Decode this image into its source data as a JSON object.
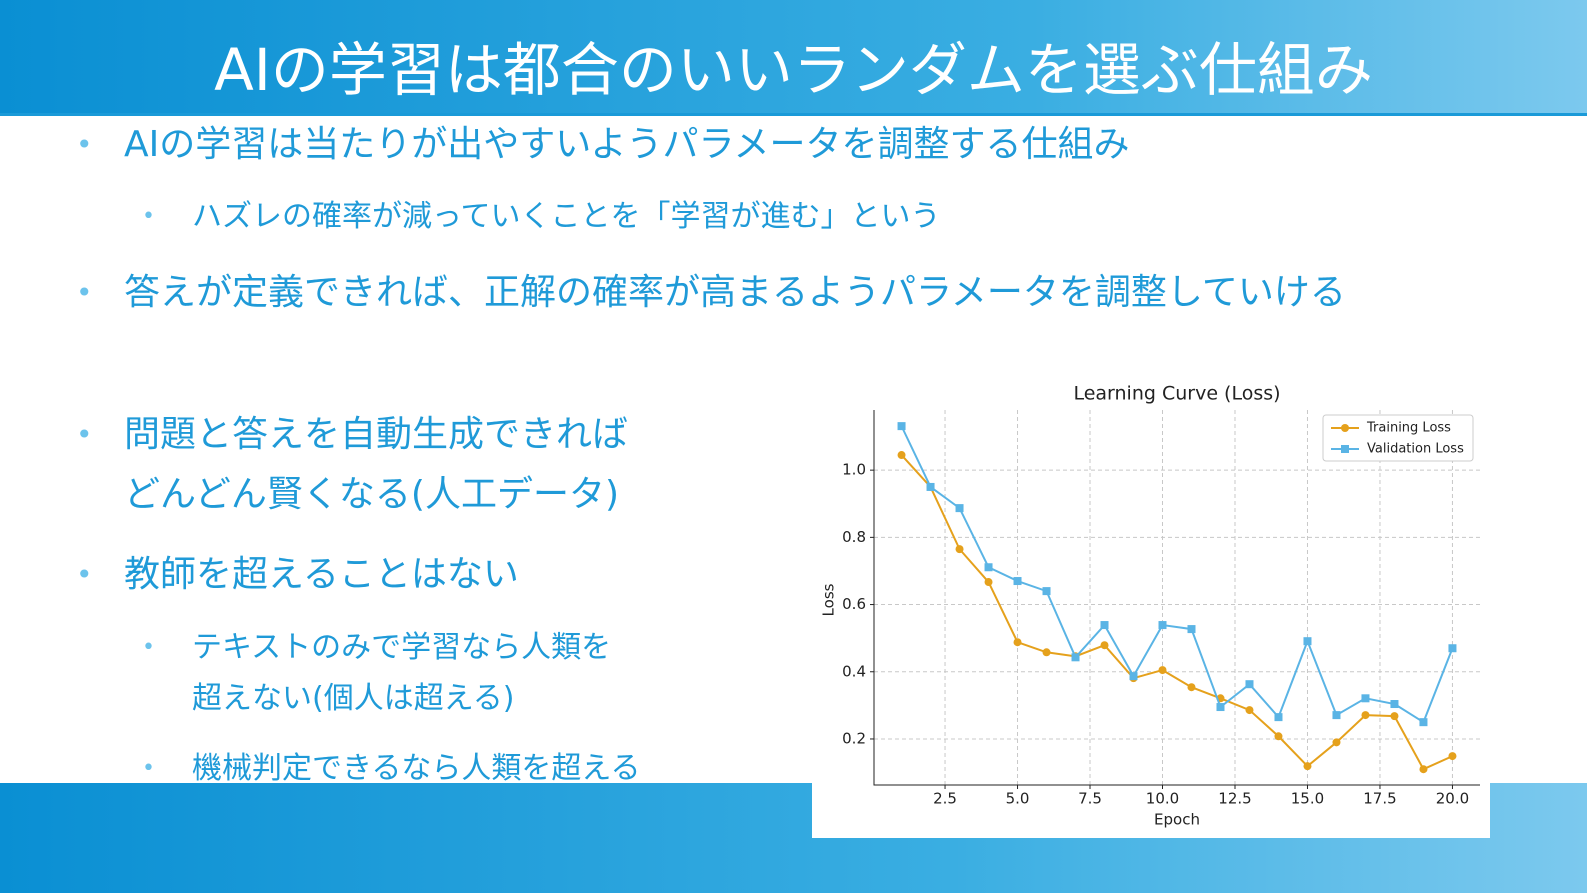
{
  "slide": {
    "title": "AIの学習は都合のいいランダムを選ぶ仕組み",
    "bullets": [
      {
        "text": "AIの学習は当たりが出やすいようパラメータを調整する仕組み",
        "sub": [
          "ハズレの確率が減っていくことを「学習が進む」という"
        ]
      },
      {
        "text": "答えが定義できれば、正解の確率が高まるようパラメータを調整していける",
        "sub": []
      },
      {
        "text": "問題と答えを自動生成できれば\nどんどん賢くなる(人工データ)",
        "sub": []
      },
      {
        "text": "教師を超えることはない",
        "sub": [
          "テキストのみで学習なら人類を\n超えない(個人は超える)",
          "機械判定できるなら人類を超える"
        ]
      }
    ]
  },
  "chart_data": {
    "type": "line",
    "title": "Learning Curve (Loss)",
    "x_label": "Epoch",
    "y_label": "Loss",
    "x": [
      1,
      2,
      3,
      4,
      5,
      6,
      7,
      8,
      9,
      10,
      11,
      12,
      13,
      14,
      15,
      16,
      17,
      18,
      19,
      20
    ],
    "series": [
      {
        "name": "Training Loss",
        "color": "#e5a11c",
        "marker": "circle",
        "values": [
          1.045,
          0.95,
          0.765,
          0.667,
          0.488,
          0.458,
          0.446,
          0.479,
          0.381,
          0.405,
          0.354,
          0.321,
          0.286,
          0.208,
          0.119,
          0.19,
          0.271,
          0.268,
          0.11,
          0.149
        ]
      },
      {
        "name": "Validation Loss",
        "color": "#5ab4e5",
        "marker": "square",
        "values": [
          1.131,
          0.95,
          0.887,
          0.711,
          0.67,
          0.64,
          0.443,
          0.539,
          0.387,
          0.539,
          0.527,
          0.295,
          0.363,
          0.265,
          0.491,
          0.271,
          0.321,
          0.304,
          0.25,
          0.47
        ]
      }
    ],
    "xlim": [
      0.05,
      20.95
    ],
    "ylim": [
      0.063,
      1.179
    ],
    "xticks": [
      2.5,
      {
        "value": 5,
        "label": "5.0"
      },
      7.5,
      {
        "value": 10,
        "label": "10.0"
      },
      12.5,
      {
        "value": 15,
        "label": "15.0"
      },
      17.5,
      {
        "value": 20,
        "label": "20.0"
      }
    ],
    "yticks": [
      0.2,
      0.4,
      0.6,
      0.8,
      {
        "value": 1,
        "label": "1.0"
      }
    ],
    "grid": true,
    "legend": "upper right"
  }
}
